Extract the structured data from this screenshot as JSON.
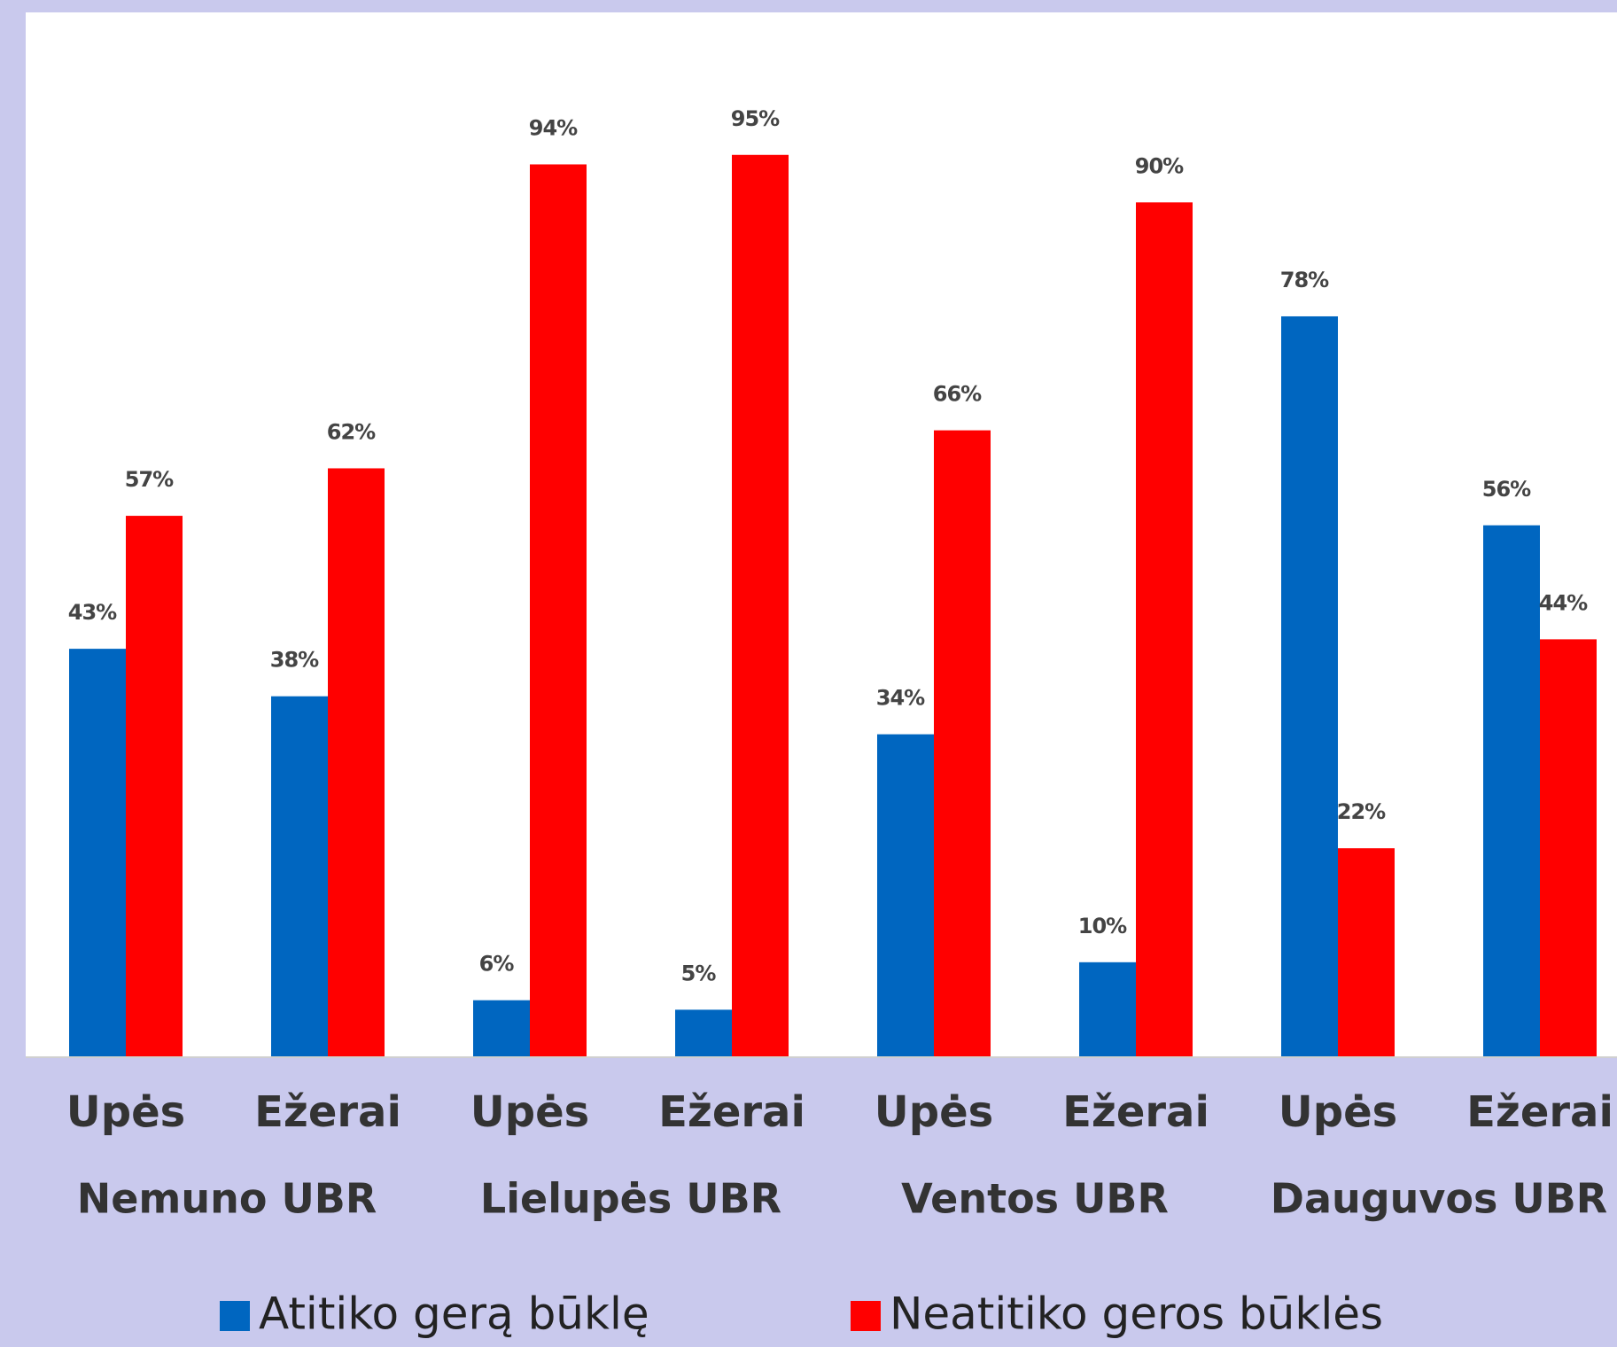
{
  "chart_data": {
    "type": "bar",
    "categories": [
      "Upės",
      "Ežerai",
      "Upės",
      "Ežerai",
      "Upės",
      "Ežerai",
      "Upės",
      "Ežerai"
    ],
    "groups": [
      "Nemuno UBR",
      "Lielupės UBR",
      "Ventos UBR",
      "Dauguvos UBR"
    ],
    "series": [
      {
        "name": "Atitiko gerą būklę",
        "color": "#0066c0",
        "values": [
          43,
          38,
          6,
          5,
          34,
          10,
          78,
          56
        ],
        "value_labels": [
          "43%",
          "38%",
          "6%",
          "5%",
          "34%",
          "10%",
          "78%",
          "56%"
        ]
      },
      {
        "name": "Neatitiko geros būklės",
        "color": "#ff0000",
        "values": [
          57,
          62,
          94,
          95,
          66,
          90,
          22,
          44
        ],
        "value_labels": [
          "57%",
          "62%",
          "94%",
          "95%",
          "66%",
          "90%",
          "22%",
          "44%"
        ]
      }
    ],
    "ylim": [
      0,
      110
    ]
  }
}
